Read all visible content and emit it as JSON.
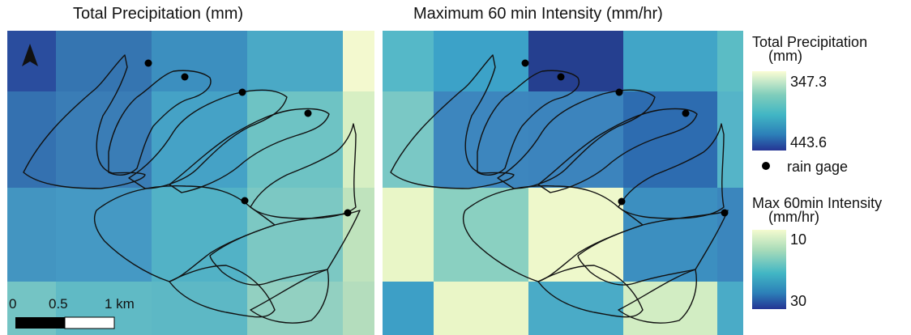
{
  "maps": {
    "precip_title": "Total Precipitation (mm)",
    "intensity_title": "Maximum 60 min Intensity (mm/hr)"
  },
  "legend": {
    "precip": {
      "title_line1": "Total Precipitation",
      "title_line2": "(mm)",
      "min_label": "347.3",
      "max_label": "443.6",
      "color_low": "#fbfdd4",
      "color_mid": "#41b6c4",
      "color_high": "#253494"
    },
    "gage_label": "rain gage",
    "intensity": {
      "title_line1": "Max 60min Intensity",
      "title_line2": "(mm/hr)",
      "min_label": "10",
      "max_label": "30",
      "color_low": "#f4fbcf",
      "color_mid": "#41b6c4",
      "color_high": "#253494"
    }
  },
  "scale_bar": {
    "labels": [
      "0",
      "0.5",
      "1 km"
    ]
  },
  "north_arrow": "north-arrow-icon"
}
